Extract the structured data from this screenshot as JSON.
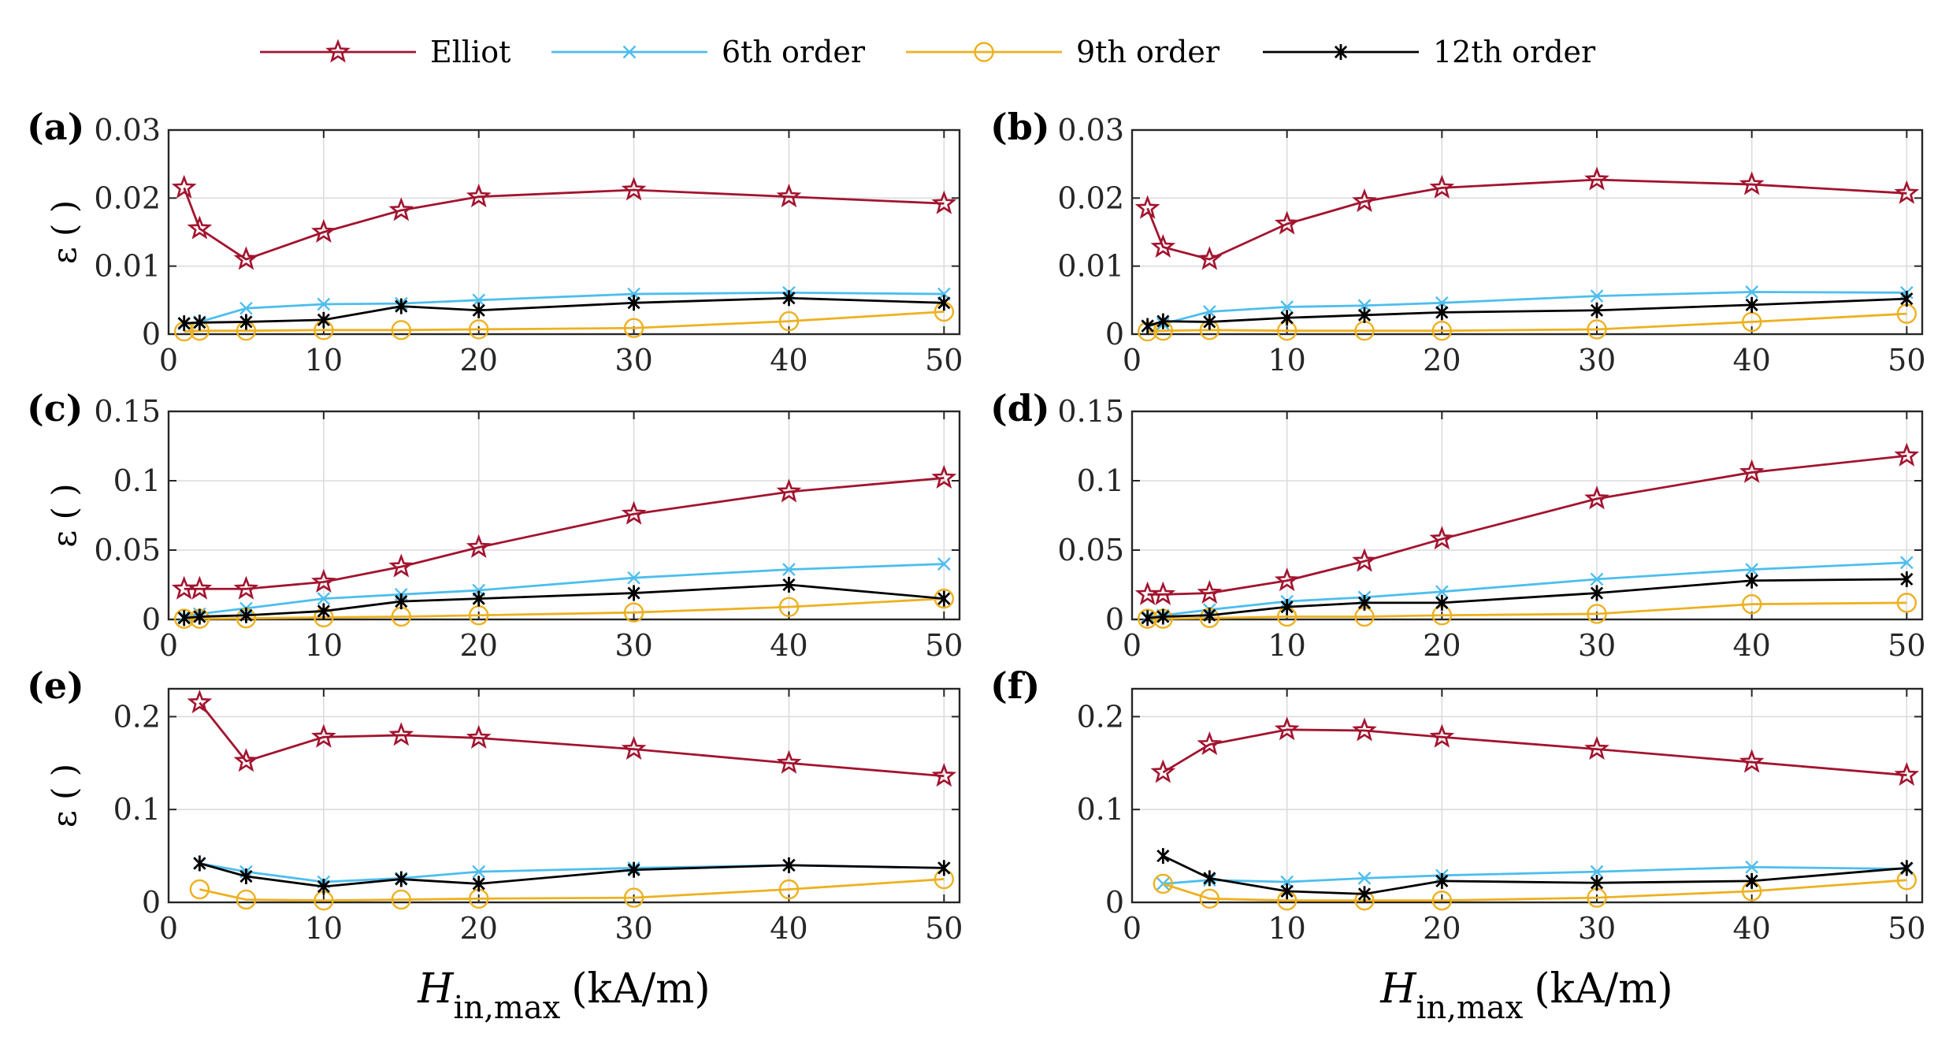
{
  "legend": {
    "items": [
      {
        "label": "Elliot",
        "color": "#A2142F",
        "marker": "star"
      },
      {
        "label": "6th order",
        "color": "#4DBEEE",
        "marker": "x"
      },
      {
        "label": "9th order",
        "color": "#EDB120",
        "marker": "circle"
      },
      {
        "label": "12th order",
        "color": "#000000",
        "marker": "asterisk"
      }
    ]
  },
  "xlabel": {
    "main": "H",
    "sub": "in,max",
    "unit": "(kA/m)"
  },
  "chart_data": [
    {
      "type": "line",
      "panel": "(a)",
      "ylabel": "ε ( )",
      "xlim": [
        0,
        51
      ],
      "ylim": [
        0,
        0.03
      ],
      "xticks": [
        0,
        10,
        20,
        30,
        40,
        50
      ],
      "yticks": [
        0,
        0.01,
        0.02,
        0.03
      ],
      "ytick_labels": [
        "0",
        "0.01",
        "0.02",
        "0.03"
      ],
      "series": [
        {
          "name": "Elliot",
          "x": [
            1,
            2,
            5,
            10,
            15,
            20,
            30,
            40,
            50
          ],
          "y": [
            0.0215,
            0.0155,
            0.011,
            0.015,
            0.0182,
            0.0202,
            0.0212,
            0.0202,
            0.0192
          ]
        },
        {
          "name": "6th order",
          "x": [
            1,
            2,
            5,
            10,
            15,
            20,
            30,
            40,
            50
          ],
          "y": [
            0.0015,
            0.0018,
            0.0038,
            0.0044,
            0.0045,
            0.005,
            0.0059,
            0.0061,
            0.0059
          ]
        },
        {
          "name": "9th order",
          "x": [
            1,
            2,
            5,
            10,
            15,
            20,
            30,
            40,
            50
          ],
          "y": [
            0.0004,
            0.0005,
            0.0005,
            0.0006,
            0.0006,
            0.0007,
            0.0009,
            0.0019,
            0.0033
          ]
        },
        {
          "name": "12th order",
          "x": [
            1,
            2,
            5,
            10,
            15,
            20,
            30,
            40,
            50
          ],
          "y": [
            0.0016,
            0.0017,
            0.0018,
            0.0021,
            0.0041,
            0.0035,
            0.0046,
            0.0053,
            0.0046
          ]
        }
      ]
    },
    {
      "type": "line",
      "panel": "(b)",
      "ylabel": "",
      "xlim": [
        0,
        51
      ],
      "ylim": [
        0,
        0.03
      ],
      "xticks": [
        0,
        10,
        20,
        30,
        40,
        50
      ],
      "yticks": [
        0,
        0.01,
        0.02,
        0.03
      ],
      "ytick_labels": [
        "0",
        "0.01",
        "0.02",
        "0.03"
      ],
      "series": [
        {
          "name": "Elliot",
          "x": [
            1,
            2,
            5,
            10,
            15,
            20,
            30,
            40,
            50
          ],
          "y": [
            0.0185,
            0.0128,
            0.011,
            0.0162,
            0.0195,
            0.0215,
            0.0227,
            0.022,
            0.0207
          ]
        },
        {
          "name": "6th order",
          "x": [
            1,
            2,
            5,
            10,
            15,
            20,
            30,
            40,
            50
          ],
          "y": [
            0.0012,
            0.0015,
            0.0033,
            0.004,
            0.0042,
            0.0046,
            0.0056,
            0.0062,
            0.0061
          ]
        },
        {
          "name": "9th order",
          "x": [
            1,
            2,
            5,
            10,
            15,
            20,
            30,
            40,
            50
          ],
          "y": [
            0.0004,
            0.0005,
            0.0006,
            0.0005,
            0.0005,
            0.0005,
            0.0007,
            0.0018,
            0.003
          ]
        },
        {
          "name": "12th order",
          "x": [
            1,
            2,
            5,
            10,
            15,
            20,
            30,
            40,
            50
          ],
          "y": [
            0.0012,
            0.0019,
            0.0018,
            0.0024,
            0.0028,
            0.0032,
            0.0035,
            0.0043,
            0.0052
          ]
        }
      ]
    },
    {
      "type": "line",
      "panel": "(c)",
      "ylabel": "ε ( )",
      "xlim": [
        0,
        51
      ],
      "ylim": [
        0,
        0.15
      ],
      "xticks": [
        0,
        10,
        20,
        30,
        40,
        50
      ],
      "yticks": [
        0,
        0.05,
        0.1,
        0.15
      ],
      "ytick_labels": [
        "0",
        "0.05",
        "0.1",
        "0.15"
      ],
      "series": [
        {
          "name": "Elliot",
          "x": [
            1,
            2,
            5,
            10,
            15,
            20,
            30,
            40,
            50
          ],
          "y": [
            0.022,
            0.022,
            0.022,
            0.027,
            0.038,
            0.052,
            0.076,
            0.092,
            0.102
          ]
        },
        {
          "name": "6th order",
          "x": [
            1,
            2,
            5,
            10,
            15,
            20,
            30,
            40,
            50
          ],
          "y": [
            0.002,
            0.004,
            0.008,
            0.015,
            0.018,
            0.021,
            0.03,
            0.036,
            0.04
          ]
        },
        {
          "name": "9th order",
          "x": [
            1,
            2,
            5,
            10,
            15,
            20,
            30,
            40,
            50
          ],
          "y": [
            0.0005,
            0.0005,
            0.0008,
            0.0015,
            0.002,
            0.003,
            0.005,
            0.009,
            0.015
          ]
        },
        {
          "name": "12th order",
          "x": [
            1,
            2,
            5,
            10,
            15,
            20,
            30,
            40,
            50
          ],
          "y": [
            0.001,
            0.002,
            0.003,
            0.006,
            0.013,
            0.015,
            0.019,
            0.025,
            0.015
          ]
        }
      ]
    },
    {
      "type": "line",
      "panel": "(d)",
      "ylabel": "",
      "xlim": [
        0,
        51
      ],
      "ylim": [
        0,
        0.15
      ],
      "xticks": [
        0,
        10,
        20,
        30,
        40,
        50
      ],
      "yticks": [
        0,
        0.05,
        0.1,
        0.15
      ],
      "ytick_labels": [
        "0",
        "0.05",
        "0.1",
        "0.15"
      ],
      "series": [
        {
          "name": "Elliot",
          "x": [
            1,
            2,
            5,
            10,
            15,
            20,
            30,
            40,
            50
          ],
          "y": [
            0.018,
            0.018,
            0.019,
            0.028,
            0.042,
            0.058,
            0.087,
            0.106,
            0.118
          ]
        },
        {
          "name": "6th order",
          "x": [
            1,
            2,
            5,
            10,
            15,
            20,
            30,
            40,
            50
          ],
          "y": [
            0.002,
            0.003,
            0.007,
            0.013,
            0.016,
            0.02,
            0.029,
            0.036,
            0.041
          ]
        },
        {
          "name": "9th order",
          "x": [
            1,
            2,
            5,
            10,
            15,
            20,
            30,
            40,
            50
          ],
          "y": [
            0.0005,
            0.0005,
            0.001,
            0.002,
            0.002,
            0.003,
            0.004,
            0.011,
            0.012
          ]
        },
        {
          "name": "12th order",
          "x": [
            1,
            2,
            5,
            10,
            15,
            20,
            30,
            40,
            50
          ],
          "y": [
            0.001,
            0.002,
            0.003,
            0.009,
            0.012,
            0.012,
            0.019,
            0.028,
            0.029
          ]
        }
      ]
    },
    {
      "type": "line",
      "panel": "(e)",
      "ylabel": "ε ( )",
      "xlim": [
        0,
        51
      ],
      "ylim": [
        0,
        0.23
      ],
      "xticks": [
        0,
        10,
        20,
        30,
        40,
        50
      ],
      "yticks": [
        0,
        0.1,
        0.2
      ],
      "ytick_labels": [
        "0",
        "0.1",
        "0.2"
      ],
      "series": [
        {
          "name": "Elliot",
          "x": [
            2,
            5,
            10,
            15,
            20,
            30,
            40,
            50
          ],
          "y": [
            0.215,
            0.152,
            0.178,
            0.18,
            0.177,
            0.165,
            0.15,
            0.136
          ]
        },
        {
          "name": "6th order",
          "x": [
            2,
            5,
            10,
            15,
            20,
            30,
            40,
            50
          ],
          "y": [
            0.042,
            0.033,
            0.022,
            0.026,
            0.033,
            0.037,
            0.04,
            0.037
          ]
        },
        {
          "name": "9th order",
          "x": [
            2,
            5,
            10,
            15,
            20,
            30,
            40,
            50
          ],
          "y": [
            0.014,
            0.003,
            0.002,
            0.003,
            0.004,
            0.005,
            0.014,
            0.025
          ]
        },
        {
          "name": "12th order",
          "x": [
            2,
            5,
            10,
            15,
            20,
            30,
            40,
            50
          ],
          "y": [
            0.042,
            0.028,
            0.017,
            0.025,
            0.02,
            0.035,
            0.04,
            0.037
          ]
        }
      ]
    },
    {
      "type": "line",
      "panel": "(f)",
      "ylabel": "",
      "xlim": [
        0,
        51
      ],
      "ylim": [
        0,
        0.23
      ],
      "xticks": [
        0,
        10,
        20,
        30,
        40,
        50
      ],
      "yticks": [
        0,
        0.1,
        0.2
      ],
      "ytick_labels": [
        "0",
        "0.1",
        "0.2"
      ],
      "series": [
        {
          "name": "Elliot",
          "x": [
            2,
            5,
            10,
            15,
            20,
            30,
            40,
            50
          ],
          "y": [
            0.14,
            0.17,
            0.186,
            0.185,
            0.178,
            0.165,
            0.151,
            0.137
          ]
        },
        {
          "name": "6th order",
          "x": [
            2,
            5,
            10,
            15,
            20,
            30,
            40,
            50
          ],
          "y": [
            0.02,
            0.024,
            0.022,
            0.026,
            0.029,
            0.033,
            0.038,
            0.036
          ]
        },
        {
          "name": "9th order",
          "x": [
            2,
            5,
            10,
            15,
            20,
            30,
            40,
            50
          ],
          "y": [
            0.02,
            0.004,
            0.002,
            0.002,
            0.002,
            0.005,
            0.012,
            0.024
          ]
        },
        {
          "name": "12th order",
          "x": [
            2,
            5,
            10,
            15,
            20,
            30,
            40,
            50
          ],
          "y": [
            0.05,
            0.026,
            0.012,
            0.009,
            0.023,
            0.021,
            0.023,
            0.037
          ]
        }
      ]
    }
  ]
}
